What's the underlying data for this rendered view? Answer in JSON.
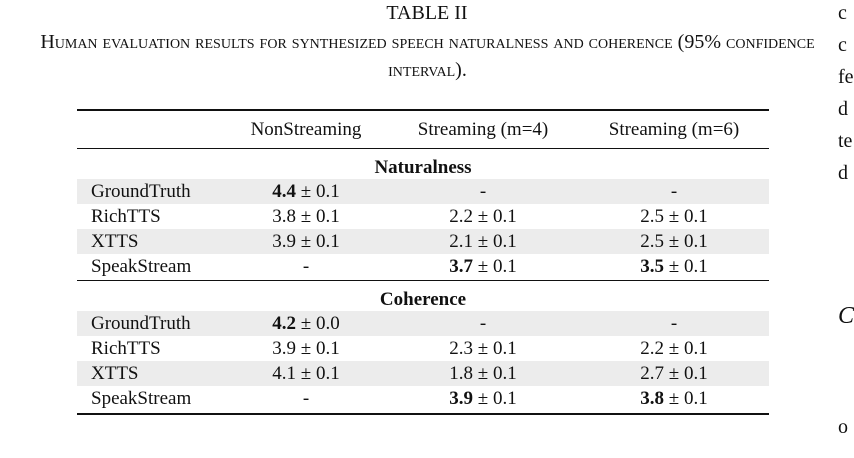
{
  "caption": {
    "title": "TABLE II",
    "text": "Human evaluation results for synthesized speech naturalness and coherence (95% confidence interval)."
  },
  "table": {
    "columns": [
      "",
      "NonStreaming",
      "Streaming (m=4)",
      "Streaming (m=6)"
    ],
    "pm": "±",
    "sections": [
      {
        "title": "Naturalness",
        "rows": [
          {
            "label": "GroundTruth",
            "cells": [
              {
                "value": "4.4",
                "ci": "0.1",
                "bold": true
              },
              {
                "text": "-"
              },
              {
                "text": "-"
              }
            ]
          },
          {
            "label": "RichTTS",
            "cells": [
              {
                "value": "3.8",
                "ci": "0.1"
              },
              {
                "value": "2.2",
                "ci": "0.1"
              },
              {
                "value": "2.5",
                "ci": "0.1"
              }
            ]
          },
          {
            "label": "XTTS",
            "cells": [
              {
                "value": "3.9",
                "ci": "0.1"
              },
              {
                "value": "2.1",
                "ci": "0.1"
              },
              {
                "value": "2.5",
                "ci": "0.1"
              }
            ]
          },
          {
            "label": "SpeakStream",
            "cells": [
              {
                "text": "-"
              },
              {
                "value": "3.7",
                "ci": "0.1",
                "bold": true
              },
              {
                "value": "3.5",
                "ci": "0.1",
                "bold": true
              }
            ]
          }
        ]
      },
      {
        "title": "Coherence",
        "rows": [
          {
            "label": "GroundTruth",
            "cells": [
              {
                "value": "4.2",
                "ci": "0.0",
                "bold": true
              },
              {
                "text": "-"
              },
              {
                "text": "-"
              }
            ]
          },
          {
            "label": "RichTTS",
            "cells": [
              {
                "value": "3.9",
                "ci": "0.1"
              },
              {
                "value": "2.3",
                "ci": "0.1"
              },
              {
                "value": "2.2",
                "ci": "0.1"
              }
            ]
          },
          {
            "label": "XTTS",
            "cells": [
              {
                "value": "4.1",
                "ci": "0.1"
              },
              {
                "value": "1.8",
                "ci": "0.1"
              },
              {
                "value": "2.7",
                "ci": "0.1"
              }
            ]
          },
          {
            "label": "SpeakStream",
            "cells": [
              {
                "text": "-"
              },
              {
                "value": "3.9",
                "ci": "0.1",
                "bold": true
              },
              {
                "value": "3.8",
                "ci": "0.1",
                "bold": true
              }
            ]
          }
        ]
      }
    ]
  },
  "margin_fragments": [
    "c",
    "c",
    "fe",
    "d",
    "te",
    "d",
    "C",
    "o"
  ]
}
